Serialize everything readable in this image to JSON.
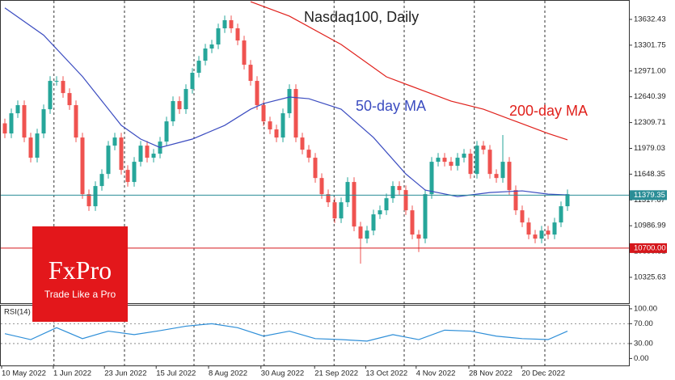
{
  "chart_data": {
    "type": "candlestick",
    "title": "Nasdaq100, Daily",
    "up_color": "#26a69a",
    "down_color": "#ef5350",
    "xlim": [
      -0.75,
      96.5
    ],
    "xticks": [
      {
        "value": -0.5,
        "label": "10 May 2022"
      },
      {
        "value": 7.5,
        "label": "1 Jun 2022"
      },
      {
        "value": 15.4,
        "label": "23 Jun 2022"
      },
      {
        "value": 23.4,
        "label": "15 Jul 2022"
      },
      {
        "value": 31.5,
        "label": "8 Aug 2022"
      },
      {
        "value": 39.6,
        "label": "30 Aug 2022"
      },
      {
        "value": 47.9,
        "label": "21 Sep 2022"
      },
      {
        "value": 55.8,
        "label": "13 Oct 2022"
      },
      {
        "value": 63.6,
        "label": "4 Nov 2022"
      },
      {
        "value": 71.75,
        "label": "28 Nov 2022"
      },
      {
        "value": 79.9,
        "label": "20 Dec 2022"
      }
    ],
    "xgrid": [
      7.6,
      18.5,
      29.25,
      40.1,
      50.9,
      61.75,
      72.6,
      83.5
    ],
    "ylim": [
      9994,
      13881
    ],
    "yticks": [
      13632.43,
      13301.75,
      {
        "value": 12971,
        "label": "12971.00"
      },
      12640.39,
      12309.71,
      11979.03,
      11648.35,
      11317.67,
      10986.99,
      10656.31,
      10325.63
    ],
    "open": [
      12300,
      12170,
      12429,
      12533,
      12118,
      11859,
      12170,
      12481,
      12844,
      12844,
      12688,
      12533,
      12118,
      11392,
      11237,
      11496,
      11651,
      12014,
      12118,
      11703,
      11548,
      11807,
      12014,
      11859,
      11911,
      12066,
      12325,
      12585,
      12481,
      12740,
      12948,
      13103,
      13259,
      13311,
      13518,
      13622,
      13518,
      13362,
      13051,
      12844,
      12533,
      12325,
      12222,
      12118,
      12429,
      12740,
      12118,
      11962,
      11859,
      11599,
      11392,
      11288,
      11081,
      11288,
      11548,
      10977,
      10822,
      10925,
      11133,
      11185,
      11340,
      11496,
      11444,
      11185,
      10874,
      10822,
      11392,
      11807,
      11859,
      11807,
      11755,
      11859,
      11911,
      11651,
      12014,
      11962,
      11651,
      11599,
      11807,
      11444,
      11185,
      11029,
      10874,
      10822,
      10925,
      10874,
      11029,
      11237
    ],
    "high": [
      12360,
      12489,
      12593,
      12593,
      12178,
      12230,
      12541,
      12904,
      12904,
      12904,
      12748,
      12593,
      12178,
      11452,
      11556,
      11711,
      12074,
      12178,
      12178,
      11763,
      11867,
      12074,
      12074,
      11971,
      12126,
      12385,
      12645,
      12645,
      12800,
      13008,
      13163,
      13319,
      13371,
      13578,
      13682,
      13682,
      13578,
      13422,
      13111,
      12904,
      12593,
      12385,
      12282,
      12489,
      12800,
      12800,
      12178,
      12022,
      11919,
      11659,
      11452,
      11348,
      11348,
      11608,
      11608,
      11037,
      10985,
      11193,
      11245,
      11400,
      11556,
      11556,
      11504,
      11245,
      10934,
      11452,
      11867,
      11919,
      11919,
      11867,
      11919,
      11971,
      11971,
      12074,
      12074,
      12022,
      11711,
      12150,
      11867,
      11504,
      11245,
      11089,
      10934,
      10985,
      10985,
      11089,
      11297,
      11452
    ],
    "low": [
      12110,
      12110,
      12369,
      12058,
      11799,
      11799,
      12110,
      12421,
      12784,
      12628,
      12473,
      12058,
      11332,
      11177,
      11177,
      11436,
      11591,
      11954,
      11643,
      11488,
      11488,
      11747,
      11799,
      11799,
      11851,
      12006,
      12265,
      12421,
      12421,
      12680,
      12888,
      13043,
      13199,
      13251,
      13458,
      13458,
      13302,
      12991,
      12784,
      12473,
      12265,
      12162,
      12058,
      12058,
      12369,
      12058,
      11902,
      11799,
      11539,
      11332,
      11228,
      11021,
      11021,
      11228,
      10917,
      10500,
      10762,
      10865,
      11073,
      11125,
      11280,
      11384,
      11125,
      10814,
      10650,
      10762,
      11332,
      11747,
      11747,
      11695,
      11695,
      11799,
      11591,
      11591,
      11902,
      11591,
      11539,
      11539,
      11384,
      11125,
      10969,
      10814,
      10762,
      10762,
      10814,
      10814,
      10969,
      11177
    ],
    "close": [
      12170,
      12429,
      12533,
      12118,
      11859,
      12170,
      12481,
      12844,
      12844,
      12688,
      12533,
      12118,
      11392,
      11237,
      11496,
      11651,
      12014,
      12118,
      11703,
      11548,
      11807,
      12014,
      11859,
      11911,
      12066,
      12325,
      12585,
      12481,
      12740,
      12948,
      13103,
      13259,
      13311,
      13518,
      13622,
      13518,
      13362,
      13051,
      12844,
      12533,
      12325,
      12222,
      12118,
      12429,
      12740,
      12118,
      11962,
      11859,
      11599,
      11392,
      11288,
      11081,
      11288,
      11548,
      10977,
      10822,
      10925,
      11133,
      11185,
      11340,
      11496,
      11444,
      11185,
      10874,
      10822,
      11392,
      11807,
      11859,
      11807,
      11755,
      11859,
      11911,
      11651,
      12014,
      11962,
      11651,
      11599,
      11807,
      11444,
      11185,
      11029,
      10874,
      10822,
      10925,
      10874,
      11029,
      11237,
      11392
    ],
    "lines": [
      {
        "name": "50-day MA",
        "color": "#3b4cc0",
        "x": [
          0,
          6,
          12,
          18,
          21,
          24,
          29,
          34,
          38,
          40,
          44,
          47,
          52,
          57,
          62,
          65,
          70,
          75,
          80,
          84,
          87
        ],
        "values": [
          13780,
          13430,
          12900,
          12274,
          12098,
          11990,
          12098,
          12274,
          12481,
          12554,
          12637,
          12616,
          12481,
          12118,
          11651,
          11444,
          11361,
          11413,
          11434,
          11392,
          11382
        ]
      },
      {
        "name": "200-day MA",
        "color": "#e0201b",
        "x": [
          38,
          44,
          52,
          59,
          64,
          69,
          74,
          79,
          84,
          87
        ],
        "values": [
          13860,
          13674,
          13311,
          12896,
          12740,
          12585,
          12481,
          12325,
          12170,
          12088
        ]
      }
    ],
    "levels": [
      {
        "value": 11379.35,
        "color": "#2a8d96"
      },
      {
        "value": {
          "value": 10700,
          "label": "10700.00"
        },
        "color": "#d5161b"
      }
    ],
    "rsi": {
      "label": "RSI(14)",
      "color": "#2f8fd8",
      "ylim": [
        -14,
        108
      ],
      "yticks": [
        {
          "value": 100,
          "label": "100.00"
        },
        {
          "value": 70,
          "label": "70.00"
        },
        {
          "value": 30,
          "label": "30.00"
        },
        {
          "value": 0,
          "label": "0.00"
        }
      ],
      "x": [
        0,
        4,
        8,
        12,
        16,
        20,
        24,
        28,
        32,
        36,
        40,
        44,
        48,
        52,
        56,
        60,
        64,
        68,
        72,
        76,
        80,
        84,
        87
      ],
      "values": [
        50,
        38,
        62,
        40,
        55,
        48,
        56,
        65,
        70,
        62,
        45,
        55,
        40,
        38,
        35,
        48,
        38,
        57,
        55,
        45,
        40,
        38,
        55
      ]
    }
  },
  "logo": {
    "brand": "FxPro",
    "tagline": "Trade Like a Pro"
  }
}
